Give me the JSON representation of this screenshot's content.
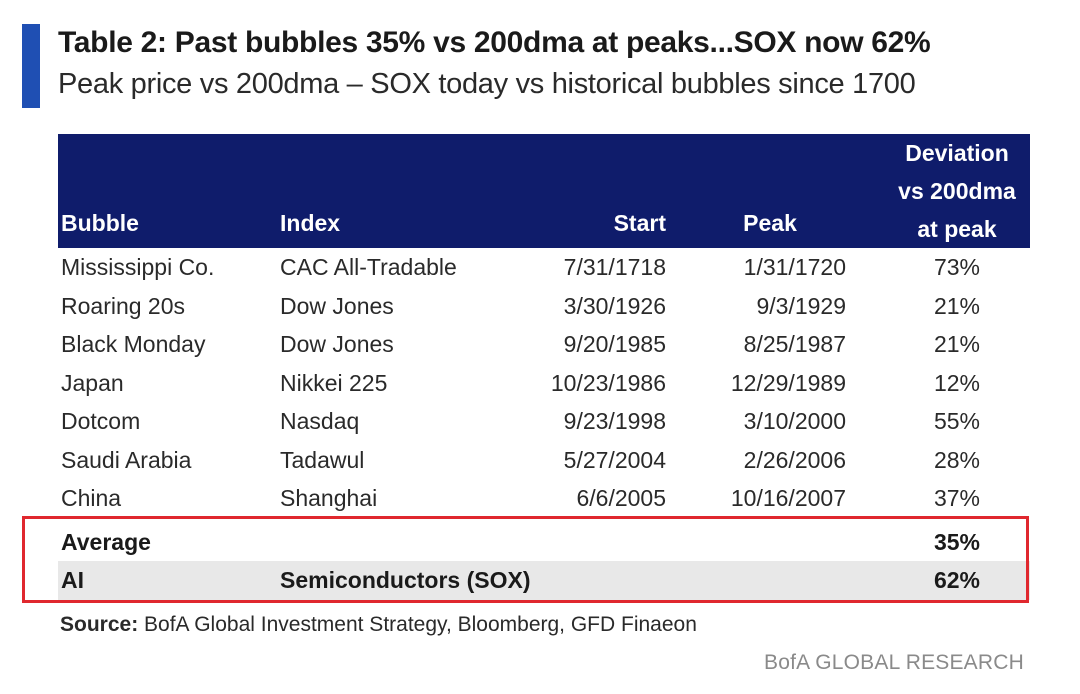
{
  "header": {
    "title": "Table 2: Past bubbles 35% vs 200dma at peaks...SOX now 62%",
    "subtitle": "Peak price vs 200dma – SOX today vs historical bubbles since 1700"
  },
  "colors": {
    "accent": "#1f4fb3",
    "header_bg": "#0f1c6b",
    "highlight_border": "#e0282e",
    "ai_row_bg": "#e8e8e8"
  },
  "chart_data": {
    "type": "table",
    "columns": [
      "Bubble",
      "Index",
      "Start",
      "Peak",
      "Deviation vs 200dma at peak"
    ],
    "column_header_lines": {
      "deviation": [
        "Deviation",
        "vs 200dma",
        "at peak"
      ]
    },
    "rows": [
      {
        "bubble": "Mississippi Co.",
        "index": "CAC All-Tradable",
        "start": "7/31/1718",
        "peak": "1/31/1720",
        "deviation": "73%"
      },
      {
        "bubble": "Roaring 20s",
        "index": "Dow Jones",
        "start": "3/30/1926",
        "peak": "9/3/1929",
        "deviation": "21%"
      },
      {
        "bubble": "Black Monday",
        "index": "Dow Jones",
        "start": "9/20/1985",
        "peak": "8/25/1987",
        "deviation": "21%"
      },
      {
        "bubble": "Japan",
        "index": "Nikkei 225",
        "start": "10/23/1986",
        "peak": "12/29/1989",
        "deviation": "12%"
      },
      {
        "bubble": "Dotcom",
        "index": "Nasdaq",
        "start": "9/23/1998",
        "peak": "3/10/2000",
        "deviation": "55%"
      },
      {
        "bubble": "Saudi Arabia",
        "index": "Tadawul",
        "start": "5/27/2004",
        "peak": "2/26/2006",
        "deviation": "28%"
      },
      {
        "bubble": "China",
        "index": "Shanghai",
        "start": "6/6/2005",
        "peak": "10/16/2007",
        "deviation": "37%"
      }
    ],
    "summary_rows": [
      {
        "bubble": "Average",
        "index": "",
        "start": "",
        "peak": "",
        "deviation": "35%"
      },
      {
        "bubble": "AI",
        "index": "Semiconductors (SOX)",
        "start": "",
        "peak": "",
        "deviation": "62%"
      }
    ]
  },
  "footer": {
    "source_label": "Source:",
    "source_text": " BofA Global Investment Strategy, Bloomberg, GFD Finaeon",
    "brand": "BofA GLOBAL RESEARCH"
  }
}
